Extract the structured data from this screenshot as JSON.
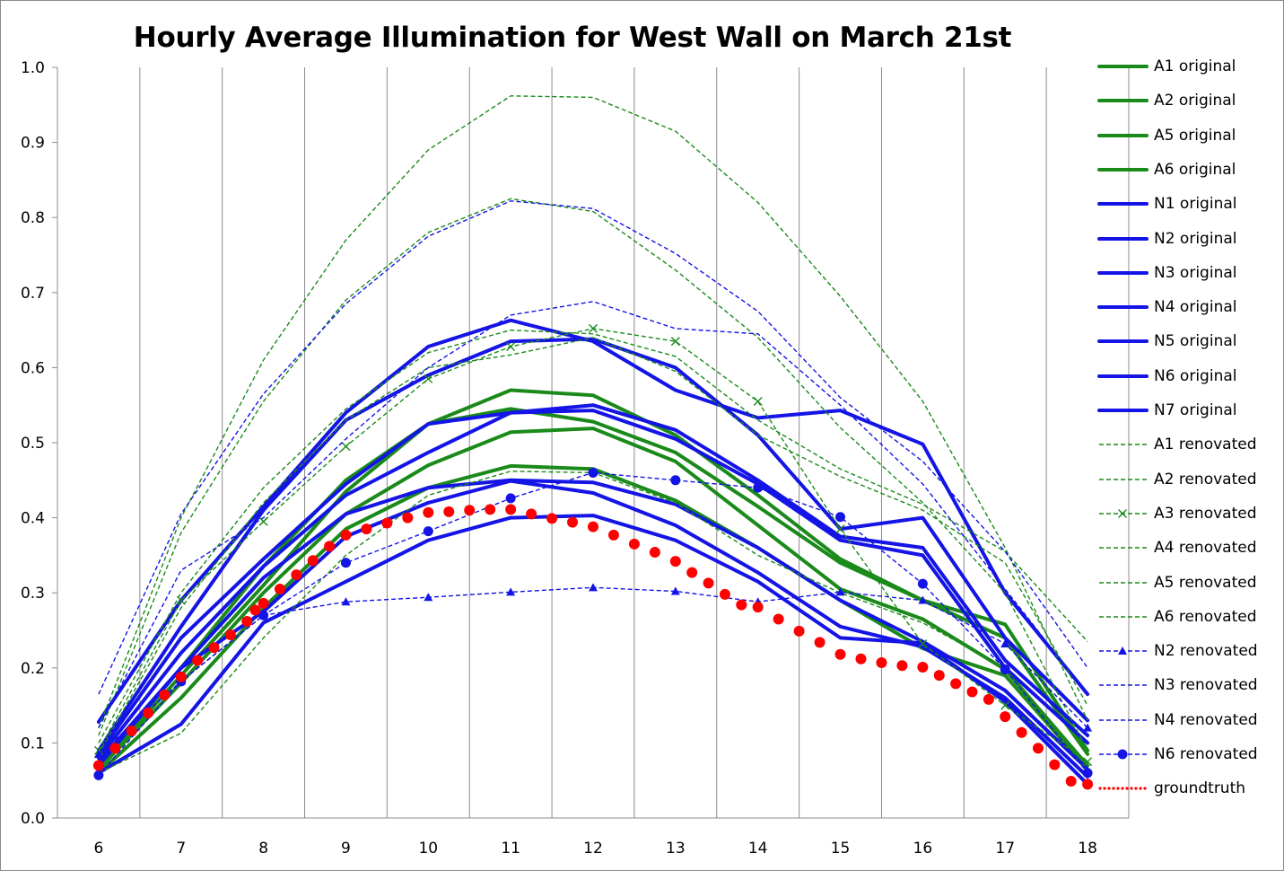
{
  "chart_data": {
    "type": "line",
    "title": "Hourly Average Illumination for West Wall on March 21st",
    "xlabel": "",
    "ylabel": "",
    "x": [
      6,
      7,
      8,
      9,
      10,
      11,
      12,
      13,
      14,
      15,
      16,
      17,
      18
    ],
    "xlim": [
      5.5,
      18.5
    ],
    "ylim": [
      0,
      1.0
    ],
    "y_ticks": [
      "0.0",
      "0.1",
      "0.2",
      "0.3",
      "0.4",
      "0.5",
      "0.6",
      "0.7",
      "0.8",
      "0.9",
      "1.0"
    ],
    "x_ticks": [
      "6",
      "7",
      "8",
      "9",
      "10",
      "11",
      "12",
      "13",
      "14",
      "15",
      "16",
      "17",
      "18"
    ],
    "grid": "vertical",
    "legend_position": "right",
    "colors": {
      "green": "#1a8a1a",
      "blue": "#1414e6",
      "red": "#ff0000"
    },
    "series": [
      {
        "name": "A1 original",
        "color": "#1a8a1a",
        "style": "solid",
        "marker": "none",
        "x": [
          6,
          7,
          8,
          9,
          10,
          11,
          12,
          13,
          14,
          15,
          16,
          17,
          18
        ],
        "y": [
          0.07,
          0.2,
          0.335,
          0.45,
          0.525,
          0.57,
          0.563,
          0.51,
          0.43,
          0.345,
          0.29,
          0.258,
          0.09
        ]
      },
      {
        "name": "A2 original",
        "color": "#1a8a1a",
        "style": "solid",
        "marker": "none",
        "x": [
          6,
          7,
          8,
          9,
          10,
          11,
          12,
          13,
          14,
          15,
          16,
          17,
          18
        ],
        "y": [
          0.068,
          0.19,
          0.31,
          0.435,
          0.525,
          0.545,
          0.528,
          0.487,
          0.415,
          0.34,
          0.29,
          0.24,
          0.085
        ]
      },
      {
        "name": "A5 original",
        "color": "#1a8a1a",
        "style": "solid",
        "marker": "none",
        "x": [
          6,
          7,
          8,
          9,
          10,
          11,
          12,
          13,
          14,
          15,
          16,
          17,
          18
        ],
        "y": [
          0.065,
          0.18,
          0.3,
          0.405,
          0.47,
          0.514,
          0.519,
          0.475,
          0.39,
          0.305,
          0.265,
          0.198,
          0.07
        ]
      },
      {
        "name": "A6 original",
        "color": "#1a8a1a",
        "style": "solid",
        "marker": "none",
        "x": [
          6,
          7,
          8,
          9,
          10,
          11,
          12,
          13,
          14,
          15,
          16,
          17,
          18
        ],
        "y": [
          0.06,
          0.16,
          0.28,
          0.385,
          0.44,
          0.469,
          0.465,
          0.423,
          0.36,
          0.29,
          0.226,
          0.19,
          0.065
        ]
      },
      {
        "name": "N1 original",
        "color": "#1414e6",
        "style": "solid",
        "marker": "none",
        "x": [
          6,
          7,
          8,
          9,
          10,
          11,
          12,
          13,
          14,
          15,
          16,
          17,
          18
        ],
        "y": [
          0.128,
          0.29,
          0.415,
          0.54,
          0.628,
          0.663,
          0.635,
          0.57,
          0.533,
          0.543,
          0.498,
          0.3,
          0.165
        ]
      },
      {
        "name": "N2 original",
        "color": "#1414e6",
        "style": "solid",
        "marker": "none",
        "x": [
          6,
          7,
          8,
          9,
          10,
          11,
          12,
          13,
          14,
          15,
          16,
          17,
          18
        ],
        "y": [
          0.09,
          0.255,
          0.41,
          0.53,
          0.59,
          0.635,
          0.638,
          0.6,
          0.51,
          0.385,
          0.4,
          0.24,
          0.13
        ]
      },
      {
        "name": "N3 original",
        "color": "#1414e6",
        "style": "solid",
        "marker": "none",
        "x": [
          6,
          7,
          8,
          9,
          10,
          11,
          12,
          13,
          14,
          15,
          16,
          17,
          18
        ],
        "y": [
          0.085,
          0.24,
          0.345,
          0.445,
          0.525,
          0.54,
          0.55,
          0.517,
          0.45,
          0.375,
          0.36,
          0.21,
          0.11
        ]
      },
      {
        "name": "N4 original",
        "color": "#1414e6",
        "style": "solid",
        "marker": "none",
        "x": [
          6,
          7,
          8,
          9,
          10,
          11,
          12,
          13,
          14,
          15,
          16,
          17,
          18
        ],
        "y": [
          0.08,
          0.22,
          0.335,
          0.43,
          0.487,
          0.54,
          0.543,
          0.505,
          0.445,
          0.37,
          0.35,
          0.2,
          0.1
        ]
      },
      {
        "name": "N5 original",
        "color": "#1414e6",
        "style": "solid",
        "marker": "none",
        "x": [
          6,
          7,
          8,
          9,
          10,
          11,
          12,
          13,
          14,
          15,
          16,
          17,
          18
        ],
        "y": [
          0.075,
          0.2,
          0.32,
          0.405,
          0.44,
          0.45,
          0.447,
          0.418,
          0.36,
          0.29,
          0.235,
          0.17,
          0.065
        ]
      },
      {
        "name": "N6 original",
        "color": "#1414e6",
        "style": "solid",
        "marker": "none",
        "x": [
          6,
          7,
          8,
          9,
          10,
          11,
          12,
          13,
          14,
          15,
          16,
          17,
          18
        ],
        "y": [
          0.07,
          0.2,
          0.275,
          0.375,
          0.42,
          0.449,
          0.433,
          0.39,
          0.327,
          0.255,
          0.228,
          0.16,
          0.055
        ]
      },
      {
        "name": "N7 original",
        "color": "#1414e6",
        "style": "solid",
        "marker": "none",
        "x": [
          6,
          7,
          8,
          9,
          10,
          11,
          12,
          13,
          14,
          15,
          16,
          17,
          18
        ],
        "y": [
          0.06,
          0.125,
          0.26,
          0.315,
          0.37,
          0.4,
          0.403,
          0.37,
          0.315,
          0.24,
          0.233,
          0.155,
          0.045
        ]
      },
      {
        "name": "A1 renovated",
        "color": "#1a8a1a",
        "style": "dashed",
        "marker": "none",
        "x": [
          6,
          7,
          8,
          9,
          10,
          11,
          12,
          13,
          14,
          15,
          16,
          17,
          18
        ],
        "y": [
          0.12,
          0.4,
          0.61,
          0.77,
          0.89,
          0.962,
          0.96,
          0.915,
          0.82,
          0.695,
          0.555,
          0.36,
          0.13
        ]
      },
      {
        "name": "A2 renovated",
        "color": "#1a8a1a",
        "style": "dashed",
        "marker": "none",
        "x": [
          6,
          7,
          8,
          9,
          10,
          11,
          12,
          13,
          14,
          15,
          16,
          17,
          18
        ],
        "y": [
          0.11,
          0.38,
          0.555,
          0.69,
          0.78,
          0.825,
          0.808,
          0.73,
          0.64,
          0.52,
          0.42,
          0.3,
          0.09
        ]
      },
      {
        "name": "A3 renovated",
        "color": "#1a8a1a",
        "style": "dashed",
        "marker": "x",
        "x": [
          6,
          7,
          8,
          9,
          10,
          11,
          12,
          13,
          14,
          15,
          16,
          17,
          18
        ],
        "y": [
          0.09,
          0.29,
          0.395,
          0.495,
          0.585,
          0.628,
          0.652,
          0.635,
          0.555,
          0.385,
          0.232,
          0.15,
          0.075
        ]
      },
      {
        "name": "A4 renovated",
        "color": "#1a8a1a",
        "style": "dashed",
        "marker": "none",
        "x": [
          6,
          7,
          8,
          9,
          10,
          11,
          12,
          13,
          14,
          15,
          16,
          17,
          18
        ],
        "y": [
          0.1,
          0.3,
          0.44,
          0.545,
          0.62,
          0.65,
          0.645,
          0.615,
          0.53,
          0.465,
          0.418,
          0.355,
          0.235
        ]
      },
      {
        "name": "A5 renovated",
        "color": "#1a8a1a",
        "style": "dashed",
        "marker": "none",
        "x": [
          6,
          7,
          8,
          9,
          10,
          11,
          12,
          13,
          14,
          15,
          16,
          17,
          18
        ],
        "y": [
          0.085,
          0.28,
          0.42,
          0.53,
          0.6,
          0.617,
          0.64,
          0.595,
          0.51,
          0.455,
          0.41,
          0.34,
          0.15
        ]
      },
      {
        "name": "A6 renovated",
        "color": "#1a8a1a",
        "style": "dashed",
        "marker": "none",
        "x": [
          6,
          7,
          8,
          9,
          10,
          11,
          12,
          13,
          14,
          15,
          16,
          17,
          18
        ],
        "y": [
          0.06,
          0.113,
          0.24,
          0.35,
          0.43,
          0.462,
          0.46,
          0.42,
          0.35,
          0.3,
          0.26,
          0.2,
          0.06
        ]
      },
      {
        "name": "N2 renovated",
        "color": "#1414e6",
        "style": "dashed",
        "marker": "triangle",
        "x": [
          6,
          7,
          8,
          9,
          10,
          11,
          12,
          13,
          14,
          15,
          16,
          17,
          18
        ],
        "y": [
          0.085,
          0.182,
          0.27,
          0.288,
          0.294,
          0.301,
          0.307,
          0.302,
          0.288,
          0.301,
          0.29,
          0.232,
          0.12
        ]
      },
      {
        "name": "N3 renovated",
        "color": "#1414e6",
        "style": "dashed",
        "marker": "none",
        "x": [
          6,
          7,
          8,
          9,
          10,
          11,
          12,
          13,
          14,
          15,
          16,
          17,
          18
        ],
        "y": [
          0.165,
          0.405,
          0.565,
          0.685,
          0.775,
          0.822,
          0.812,
          0.752,
          0.675,
          0.56,
          0.475,
          0.355,
          0.2
        ]
      },
      {
        "name": "N4 renovated",
        "color": "#1414e6",
        "style": "dashed",
        "marker": "none",
        "x": [
          6,
          7,
          8,
          9,
          10,
          11,
          12,
          13,
          14,
          15,
          16,
          17,
          18
        ],
        "y": [
          0.12,
          0.33,
          0.4,
          0.505,
          0.6,
          0.67,
          0.688,
          0.652,
          0.645,
          0.55,
          0.445,
          0.305,
          0.165
        ]
      },
      {
        "name": "N6 renovated",
        "color": "#1414e6",
        "style": "dashed",
        "marker": "circle",
        "x": [
          6,
          7,
          8,
          9,
          10,
          11,
          12,
          13,
          14,
          15,
          16,
          17,
          18
        ],
        "y": [
          0.057,
          0.182,
          0.27,
          0.34,
          0.382,
          0.426,
          0.46,
          0.45,
          0.44,
          0.401,
          0.312,
          0.198,
          0.06
        ]
      },
      {
        "name": "groundtruth",
        "color": "#ff0000",
        "style": "dotted",
        "marker": "dot",
        "x": [
          6,
          6.2,
          6.4,
          6.6,
          6.8,
          7,
          7.2,
          7.4,
          7.6,
          7.8,
          7.9,
          8,
          8.2,
          8.4,
          8.6,
          8.8,
          9,
          9.25,
          9.5,
          9.75,
          10,
          10.25,
          10.5,
          10.75,
          11,
          11.25,
          11.5,
          11.75,
          12,
          12.25,
          12.5,
          12.75,
          13,
          13.2,
          13.4,
          13.6,
          13.8,
          14,
          14.25,
          14.5,
          14.75,
          15,
          15.25,
          15.5,
          15.75,
          16,
          16.2,
          16.4,
          16.6,
          16.8,
          17,
          17.2,
          17.4,
          17.6,
          17.8,
          18
        ],
        "y": [
          0.07,
          0.093,
          0.116,
          0.14,
          0.164,
          0.188,
          0.21,
          0.227,
          0.244,
          0.262,
          0.277,
          0.286,
          0.305,
          0.324,
          0.343,
          0.362,
          0.377,
          0.385,
          0.393,
          0.4,
          0.407,
          0.408,
          0.41,
          0.411,
          0.411,
          0.405,
          0.399,
          0.394,
          0.388,
          0.377,
          0.365,
          0.354,
          0.342,
          0.327,
          0.313,
          0.298,
          0.284,
          0.281,
          0.265,
          0.249,
          0.234,
          0.218,
          0.212,
          0.207,
          0.203,
          0.201,
          0.19,
          0.179,
          0.168,
          0.158,
          0.135,
          0.114,
          0.093,
          0.071,
          0.049,
          0.045
        ]
      }
    ]
  }
}
